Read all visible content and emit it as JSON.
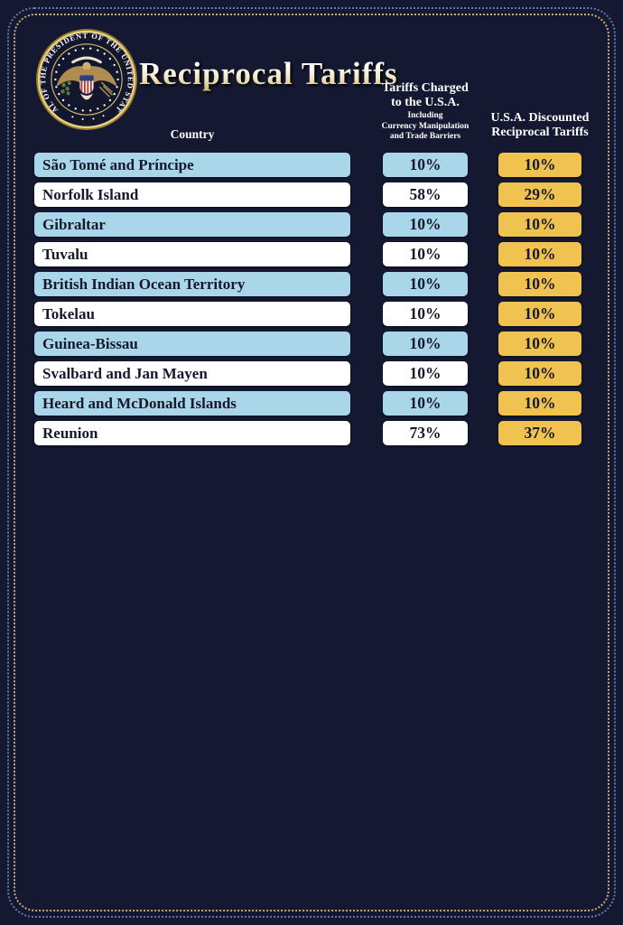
{
  "title": "Reciprocal Tariffs",
  "seal": {
    "ring_text": "SEAL OF THE PRESIDENT OF THE UNITED STATES",
    "bottom_dots": "• • • •"
  },
  "headers": {
    "country": "Country",
    "charged_line1": "Tariffs Charged",
    "charged_line2": "to the U.S.A.",
    "charged_sub1": "Including",
    "charged_sub2": "Currency Manipulation",
    "charged_sub3": "and Trade Barriers",
    "discount_line1": "U.S.A. Discounted",
    "discount_line2": "Reciprocal Tariffs"
  },
  "colors": {
    "background": "#141830",
    "row_blue": "#a9d6e8",
    "row_white": "#ffffff",
    "accent_gold": "#f0c24f",
    "cell_text": "#16182c",
    "header_text": "#ffffff",
    "border_outer_dots": "#5a7aa8",
    "border_inner_dots": "#c9ab72"
  },
  "chart_data": {
    "type": "table",
    "title": "Reciprocal Tariffs",
    "columns": [
      "Country",
      "Tariffs Charged to the U.S.A. Including Currency Manipulation and Trade Barriers",
      "U.S.A. Discounted Reciprocal Tariffs"
    ],
    "rows": [
      {
        "country": "São Tomé and Príncipe",
        "charged": "10%",
        "discounted": "10%",
        "charged_pct": 10,
        "discounted_pct": 10
      },
      {
        "country": "Norfolk Island",
        "charged": "58%",
        "discounted": "29%",
        "charged_pct": 58,
        "discounted_pct": 29
      },
      {
        "country": "Gibraltar",
        "charged": "10%",
        "discounted": "10%",
        "charged_pct": 10,
        "discounted_pct": 10
      },
      {
        "country": "Tuvalu",
        "charged": "10%",
        "discounted": "10%",
        "charged_pct": 10,
        "discounted_pct": 10
      },
      {
        "country": "British Indian Ocean Territory",
        "charged": "10%",
        "discounted": "10%",
        "charged_pct": 10,
        "discounted_pct": 10
      },
      {
        "country": "Tokelau",
        "charged": "10%",
        "discounted": "10%",
        "charged_pct": 10,
        "discounted_pct": 10
      },
      {
        "country": "Guinea-Bissau",
        "charged": "10%",
        "discounted": "10%",
        "charged_pct": 10,
        "discounted_pct": 10
      },
      {
        "country": "Svalbard and Jan Mayen",
        "charged": "10%",
        "discounted": "10%",
        "charged_pct": 10,
        "discounted_pct": 10
      },
      {
        "country": "Heard and McDonald Islands",
        "charged": "10%",
        "discounted": "10%",
        "charged_pct": 10,
        "discounted_pct": 10
      },
      {
        "country": "Reunion",
        "charged": "73%",
        "discounted": "37%",
        "charged_pct": 73,
        "discounted_pct": 37
      }
    ]
  }
}
